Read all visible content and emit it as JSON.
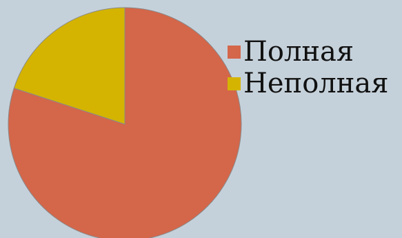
{
  "chart_data": {
    "type": "pie",
    "title": "",
    "start_angle_deg": 0,
    "direction": "clockwise",
    "slices": [
      {
        "name": "Полная",
        "value": 80,
        "color": "#d4664a"
      },
      {
        "name": "Неполная",
        "value": 20,
        "color": "#d4b400"
      }
    ],
    "legend_position": "right"
  },
  "colors": {
    "background": "#c5d1da",
    "slice_stroke": "#8a8a8a"
  }
}
